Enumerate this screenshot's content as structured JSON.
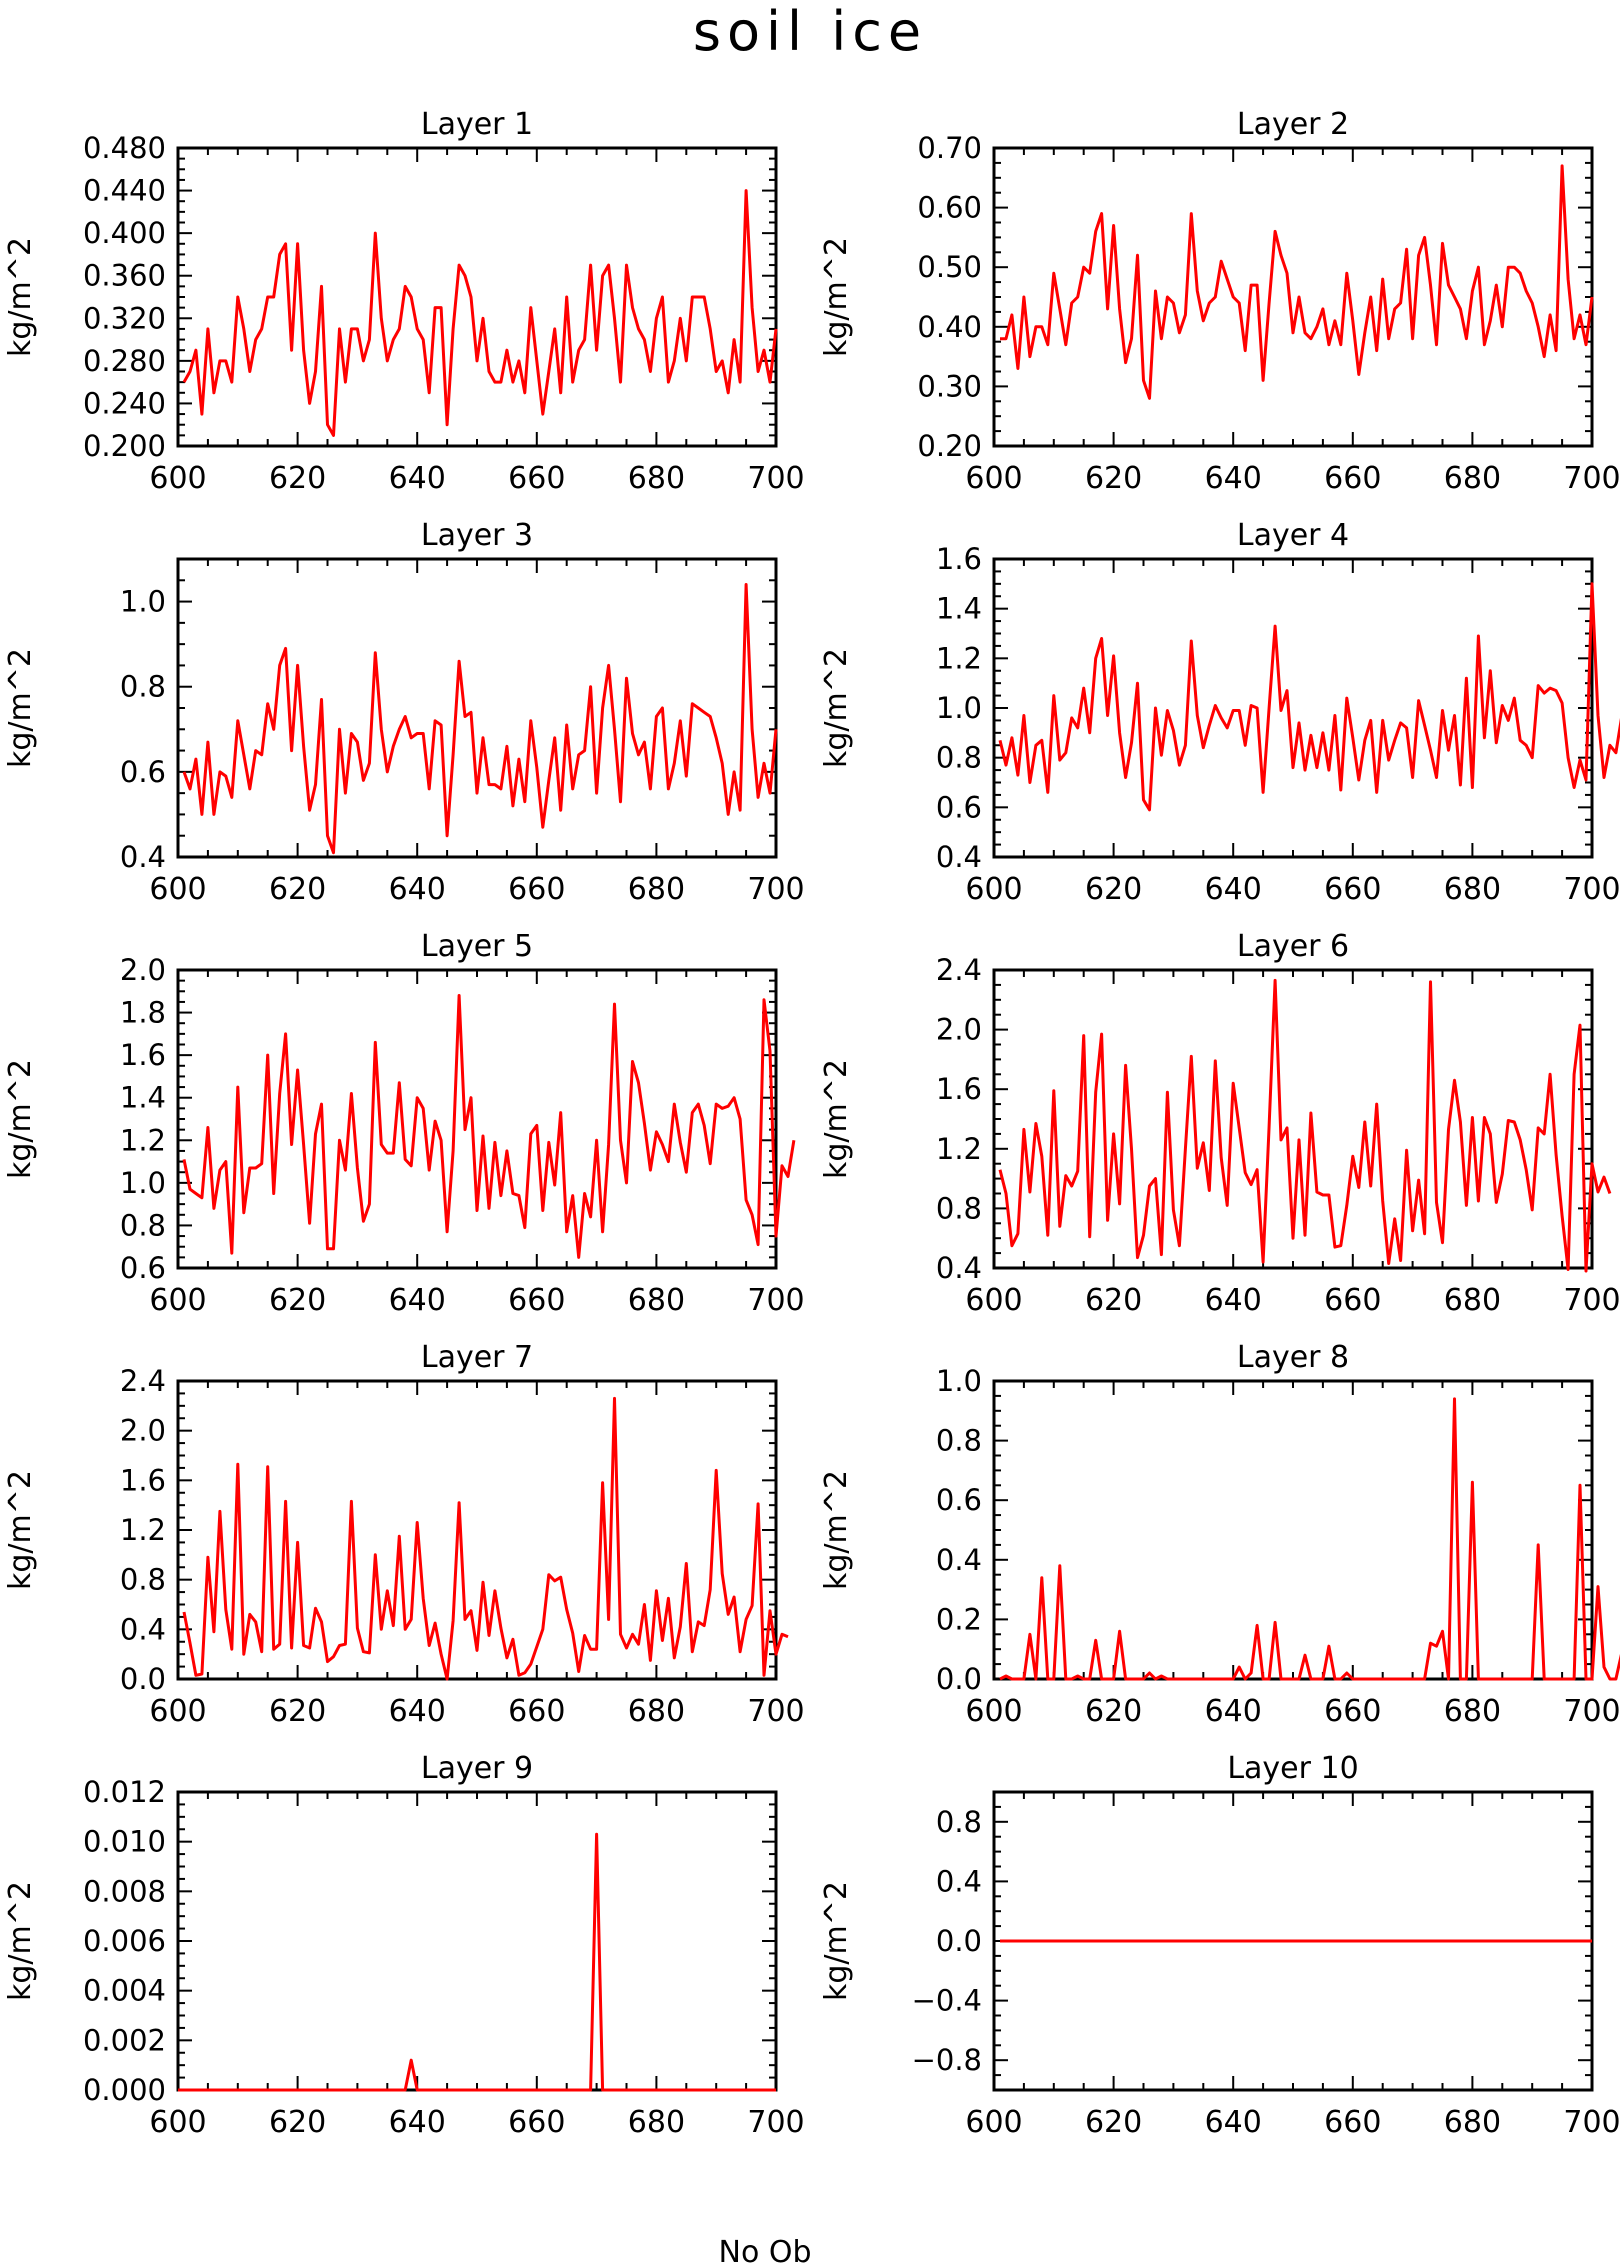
{
  "figure": {
    "title": "soil ice",
    "footer": "No Ob"
  },
  "chart_data": [
    {
      "type": "line",
      "title": "Layer 1",
      "xlabel": "",
      "ylabel": "kg/m^2",
      "xlim": [
        600,
        700
      ],
      "ylim": [
        0.2,
        0.48
      ],
      "xticks": [
        "600",
        "620",
        "640",
        "660",
        "680",
        "700"
      ],
      "yticks": [
        "0.200",
        "0.240",
        "0.280",
        "0.320",
        "0.360",
        "0.400",
        "0.440",
        "0.480"
      ],
      "line_color": "#ff0000",
      "x_start": 601,
      "values": [
        0.26,
        0.27,
        0.29,
        0.23,
        0.31,
        0.25,
        0.28,
        0.28,
        0.26,
        0.34,
        0.31,
        0.27,
        0.3,
        0.31,
        0.34,
        0.34,
        0.38,
        0.39,
        0.29,
        0.39,
        0.29,
        0.24,
        0.27,
        0.35,
        0.22,
        0.21,
        0.31,
        0.26,
        0.31,
        0.31,
        0.28,
        0.3,
        0.4,
        0.32,
        0.28,
        0.3,
        0.31,
        0.35,
        0.34,
        0.31,
        0.3,
        0.25,
        0.33,
        0.33,
        0.22,
        0.31,
        0.37,
        0.36,
        0.34,
        0.28,
        0.32,
        0.27,
        0.26,
        0.26,
        0.29,
        0.26,
        0.28,
        0.25,
        0.33,
        0.28,
        0.23,
        0.27,
        0.31,
        0.25,
        0.34,
        0.26,
        0.29,
        0.3,
        0.37,
        0.29,
        0.36,
        0.37,
        0.32,
        0.26,
        0.37,
        0.33,
        0.31,
        0.3,
        0.27,
        0.32,
        0.34,
        0.26,
        0.28,
        0.32,
        0.28,
        0.34,
        0.34,
        0.34,
        0.31,
        0.27,
        0.28,
        0.25,
        0.3,
        0.26,
        0.44,
        0.33,
        0.27,
        0.29,
        0.26,
        0.31
      ]
    },
    {
      "type": "line",
      "title": "Layer 2",
      "xlabel": "",
      "ylabel": "kg/m^2",
      "xlim": [
        600,
        700
      ],
      "ylim": [
        0.2,
        0.7
      ],
      "xticks": [
        "600",
        "620",
        "640",
        "660",
        "680",
        "700"
      ],
      "yticks": [
        "0.20",
        "0.30",
        "0.40",
        "0.50",
        "0.60",
        "0.70"
      ],
      "line_color": "#ff0000",
      "x_start": 601,
      "values": [
        0.38,
        0.38,
        0.42,
        0.33,
        0.45,
        0.35,
        0.4,
        0.4,
        0.37,
        0.49,
        0.43,
        0.37,
        0.44,
        0.45,
        0.5,
        0.49,
        0.56,
        0.59,
        0.43,
        0.57,
        0.43,
        0.34,
        0.38,
        0.52,
        0.31,
        0.28,
        0.46,
        0.38,
        0.45,
        0.44,
        0.39,
        0.42,
        0.59,
        0.46,
        0.41,
        0.44,
        0.45,
        0.51,
        0.48,
        0.45,
        0.44,
        0.36,
        0.47,
        0.47,
        0.31,
        0.44,
        0.56,
        0.52,
        0.49,
        0.39,
        0.45,
        0.39,
        0.38,
        0.4,
        0.43,
        0.37,
        0.41,
        0.37,
        0.49,
        0.41,
        0.32,
        0.39,
        0.45,
        0.36,
        0.48,
        0.38,
        0.43,
        0.44,
        0.53,
        0.38,
        0.52,
        0.55,
        0.47,
        0.37,
        0.54,
        0.47,
        0.45,
        0.43,
        0.38,
        0.46,
        0.5,
        0.37,
        0.41,
        0.47,
        0.4,
        0.5,
        0.5,
        0.49,
        0.46,
        0.44,
        0.4,
        0.35,
        0.42,
        0.36,
        0.67,
        0.48,
        0.38,
        0.42,
        0.37,
        0.45
      ]
    },
    {
      "type": "line",
      "title": "Layer 3",
      "xlabel": "",
      "ylabel": "kg/m^2",
      "xlim": [
        600,
        700
      ],
      "ylim": [
        0.4,
        1.1
      ],
      "xticks": [
        "600",
        "620",
        "640",
        "660",
        "680",
        "700"
      ],
      "yticks": [
        "0.4",
        "0.6",
        "0.8",
        "1.0"
      ],
      "line_color": "#ff0000",
      "x_start": 601,
      "values": [
        0.6,
        0.56,
        0.63,
        0.5,
        0.67,
        0.5,
        0.6,
        0.59,
        0.54,
        0.72,
        0.64,
        0.56,
        0.65,
        0.64,
        0.76,
        0.7,
        0.85,
        0.89,
        0.65,
        0.85,
        0.66,
        0.51,
        0.57,
        0.77,
        0.45,
        0.41,
        0.7,
        0.55,
        0.69,
        0.67,
        0.58,
        0.62,
        0.88,
        0.7,
        0.6,
        0.66,
        0.7,
        0.73,
        0.68,
        0.69,
        0.69,
        0.56,
        0.72,
        0.71,
        0.45,
        0.64,
        0.86,
        0.73,
        0.74,
        0.55,
        0.68,
        0.57,
        0.57,
        0.56,
        0.66,
        0.52,
        0.63,
        0.53,
        0.72,
        0.61,
        0.47,
        0.58,
        0.68,
        0.51,
        0.71,
        0.56,
        0.64,
        0.65,
        0.8,
        0.55,
        0.75,
        0.85,
        0.7,
        0.53,
        0.82,
        0.69,
        0.64,
        0.67,
        0.56,
        0.73,
        0.75,
        0.56,
        0.62,
        0.72,
        0.59,
        0.76,
        0.75,
        0.74,
        0.73,
        0.68,
        0.62,
        0.5,
        0.6,
        0.51,
        1.04,
        0.7,
        0.54,
        0.62,
        0.55,
        0.7
      ]
    },
    {
      "type": "line",
      "title": "Layer 4",
      "xlabel": "",
      "ylabel": "kg/m^2",
      "xlim": [
        600,
        700
      ],
      "ylim": [
        0.4,
        1.6
      ],
      "xticks": [
        "600",
        "620",
        "640",
        "660",
        "680",
        "700"
      ],
      "yticks": [
        "0.4",
        "0.6",
        "0.8",
        "1.0",
        "1.2",
        "1.4",
        "1.6"
      ],
      "line_color": "#ff0000",
      "x_start": 601,
      "values": [
        0.87,
        0.77,
        0.88,
        0.73,
        0.97,
        0.7,
        0.85,
        0.87,
        0.66,
        1.05,
        0.79,
        0.82,
        0.96,
        0.92,
        1.08,
        0.9,
        1.2,
        1.28,
        0.97,
        1.21,
        0.9,
        0.72,
        0.86,
        1.1,
        0.63,
        0.59,
        1.0,
        0.81,
        0.99,
        0.91,
        0.77,
        0.85,
        1.27,
        0.97,
        0.84,
        0.93,
        1.01,
        0.96,
        0.92,
        0.99,
        0.99,
        0.85,
        1.01,
        1.0,
        0.66,
        1.0,
        1.33,
        0.99,
        1.07,
        0.76,
        0.94,
        0.75,
        0.89,
        0.76,
        0.9,
        0.75,
        0.97,
        0.67,
        1.04,
        0.88,
        0.71,
        0.87,
        0.95,
        0.66,
        0.95,
        0.79,
        0.87,
        0.94,
        0.92,
        0.72,
        1.03,
        0.93,
        0.83,
        0.72,
        0.99,
        0.83,
        0.97,
        0.69,
        1.12,
        0.68,
        1.29,
        0.88,
        1.15,
        0.86,
        1.01,
        0.95,
        1.04,
        0.87,
        0.85,
        0.8,
        1.09,
        1.06,
        1.08,
        1.07,
        1.02,
        0.8,
        0.68,
        0.79,
        0.71,
        1.5,
        0.97,
        0.72,
        0.85,
        0.82,
        0.97
      ]
    },
    {
      "type": "line",
      "title": "Layer 5",
      "xlabel": "",
      "ylabel": "kg/m^2",
      "xlim": [
        600,
        700
      ],
      "ylim": [
        0.6,
        2.0
      ],
      "xticks": [
        "600",
        "620",
        "640",
        "660",
        "680",
        "700"
      ],
      "yticks": [
        "0.6",
        "0.8",
        "1.0",
        "1.2",
        "1.4",
        "1.6",
        "1.8",
        "2.0"
      ],
      "line_color": "#ff0000",
      "x_start": 601,
      "values": [
        1.11,
        0.97,
        0.95,
        0.93,
        1.26,
        0.88,
        1.06,
        1.1,
        0.67,
        1.45,
        0.86,
        1.07,
        1.07,
        1.09,
        1.6,
        0.95,
        1.42,
        1.7,
        1.18,
        1.53,
        1.18,
        0.81,
        1.23,
        1.37,
        0.69,
        0.69,
        1.2,
        1.06,
        1.42,
        1.07,
        0.82,
        0.9,
        1.66,
        1.18,
        1.14,
        1.14,
        1.47,
        1.11,
        1.08,
        1.4,
        1.35,
        1.06,
        1.29,
        1.2,
        0.77,
        1.15,
        1.88,
        1.25,
        1.4,
        0.87,
        1.22,
        0.88,
        1.19,
        0.94,
        1.15,
        0.95,
        0.94,
        0.79,
        1.23,
        1.27,
        0.87,
        1.19,
        0.99,
        1.33,
        0.77,
        0.94,
        0.65,
        0.95,
        0.84,
        1.2,
        0.77,
        1.18,
        1.84,
        1.2,
        1.0,
        1.57,
        1.47,
        1.28,
        1.06,
        1.24,
        1.18,
        1.1,
        1.37,
        1.19,
        1.05,
        1.33,
        1.37,
        1.27,
        1.09,
        1.37,
        1.35,
        1.36,
        1.4,
        1.3,
        0.92,
        0.85,
        0.71,
        1.86,
        1.62,
        0.75,
        1.08,
        1.03,
        1.2
      ]
    },
    {
      "type": "line",
      "title": "Layer 6",
      "xlabel": "",
      "ylabel": "kg/m^2",
      "xlim": [
        600,
        700
      ],
      "ylim": [
        0.4,
        2.4
      ],
      "xticks": [
        "600",
        "620",
        "640",
        "660",
        "680",
        "700"
      ],
      "yticks": [
        "0.4",
        "0.8",
        "1.2",
        "1.6",
        "2.0",
        "2.4"
      ],
      "line_color": "#ff0000",
      "x_start": 601,
      "values": [
        1.06,
        0.9,
        0.55,
        0.63,
        1.33,
        0.91,
        1.37,
        1.15,
        0.62,
        1.59,
        0.68,
        1.02,
        0.95,
        1.05,
        1.96,
        0.61,
        1.58,
        1.97,
        0.72,
        1.3,
        0.83,
        1.76,
        1.2,
        0.47,
        0.62,
        0.95,
        1.0,
        0.49,
        1.58,
        0.79,
        0.55,
        1.2,
        1.82,
        1.07,
        1.24,
        0.92,
        1.79,
        1.14,
        0.82,
        1.64,
        1.34,
        1.04,
        0.96,
        1.06,
        0.44,
        1.35,
        2.33,
        1.26,
        1.34,
        0.6,
        1.26,
        0.62,
        1.44,
        0.91,
        0.89,
        0.89,
        0.54,
        0.55,
        0.82,
        1.15,
        0.94,
        1.38,
        0.95,
        1.5,
        0.85,
        0.43,
        0.73,
        0.45,
        1.19,
        0.65,
        0.99,
        0.63,
        2.32,
        0.84,
        0.57,
        1.33,
        1.66,
        1.38,
        0.82,
        1.41,
        0.85,
        1.41,
        1.3,
        0.84,
        1.03,
        1.39,
        1.38,
        1.26,
        1.06,
        0.79,
        1.34,
        1.3,
        1.7,
        1.16,
        0.75,
        0.39,
        1.7,
        2.03,
        0.38,
        1.1,
        0.91,
        1.01,
        0.9
      ]
    },
    {
      "type": "line",
      "title": "Layer 7",
      "xlabel": "",
      "ylabel": "kg/m^2",
      "xlim": [
        600,
        700
      ],
      "ylim": [
        0.0,
        2.4
      ],
      "xticks": [
        "600",
        "620",
        "640",
        "660",
        "680",
        "700"
      ],
      "yticks": [
        "0.0",
        "0.4",
        "0.8",
        "1.2",
        "1.6",
        "2.0",
        "2.4"
      ],
      "line_color": "#ff0000",
      "x_start": 601,
      "values": [
        0.54,
        0.29,
        0.03,
        0.04,
        0.98,
        0.38,
        1.35,
        0.56,
        0.24,
        1.73,
        0.2,
        0.52,
        0.46,
        0.22,
        1.71,
        0.24,
        0.28,
        1.43,
        0.25,
        1.1,
        0.27,
        0.25,
        0.57,
        0.46,
        0.14,
        0.18,
        0.27,
        0.28,
        1.43,
        0.41,
        0.22,
        0.21,
        1.0,
        0.4,
        0.71,
        0.43,
        1.15,
        0.4,
        0.48,
        1.26,
        0.65,
        0.27,
        0.45,
        0.2,
        0.0,
        0.47,
        1.42,
        0.48,
        0.55,
        0.23,
        0.78,
        0.35,
        0.71,
        0.41,
        0.17,
        0.32,
        0.03,
        0.05,
        0.12,
        0.26,
        0.4,
        0.84,
        0.79,
        0.82,
        0.56,
        0.37,
        0.06,
        0.35,
        0.24,
        0.24,
        1.58,
        0.48,
        2.26,
        0.36,
        0.25,
        0.36,
        0.28,
        0.6,
        0.15,
        0.71,
        0.31,
        0.65,
        0.17,
        0.42,
        0.93,
        0.22,
        0.46,
        0.43,
        0.72,
        1.68,
        0.85,
        0.52,
        0.66,
        0.22,
        0.48,
        0.59,
        1.41,
        0.03,
        0.55,
        0.2,
        0.36,
        0.34
      ]
    },
    {
      "type": "line",
      "title": "Layer 8",
      "xlabel": "",
      "ylabel": "kg/m^2",
      "xlim": [
        600,
        700
      ],
      "ylim": [
        0.0,
        1.0
      ],
      "xticks": [
        "600",
        "620",
        "640",
        "660",
        "680",
        "700"
      ],
      "yticks": [
        "0.0",
        "0.2",
        "0.4",
        "0.6",
        "0.8",
        "1.0"
      ],
      "line_color": "#ff0000",
      "x_start": 601,
      "values": [
        0.0,
        0.01,
        0.0,
        0.0,
        0.0,
        0.15,
        0.0,
        0.34,
        0.0,
        0.0,
        0.38,
        0.0,
        0.0,
        0.01,
        0.0,
        0.0,
        0.13,
        0.0,
        0.0,
        0.0,
        0.16,
        0.0,
        0.0,
        0.0,
        0.0,
        0.02,
        0.0,
        0.01,
        0.0,
        0.0,
        0.0,
        0.0,
        0.0,
        0.0,
        0.0,
        0.0,
        0.0,
        0.0,
        0.0,
        0.0,
        0.04,
        0.0,
        0.02,
        0.18,
        0.0,
        0.0,
        0.19,
        0.0,
        0.0,
        0.0,
        0.0,
        0.08,
        0.0,
        0.0,
        0.0,
        0.11,
        0.0,
        0.0,
        0.02,
        0.0,
        0.0,
        0.0,
        0.0,
        0.0,
        0.0,
        0.0,
        0.0,
        0.0,
        0.0,
        0.0,
        0.0,
        0.0,
        0.12,
        0.11,
        0.16,
        0.0,
        0.94,
        0.0,
        0.0,
        0.66,
        0.0,
        0.0,
        0.0,
        0.0,
        0.0,
        0.0,
        0.0,
        0.0,
        0.0,
        0.0,
        0.45,
        0.0,
        0.0,
        0.0,
        0.0,
        0.0,
        0.0,
        0.65,
        0.0,
        0.0,
        0.31,
        0.04,
        0.0,
        0.0,
        0.09,
        0.0,
        0.0,
        0.0
      ]
    },
    {
      "type": "line",
      "title": "Layer 9",
      "xlabel": "",
      "ylabel": "kg/m^2",
      "xlim": [
        600,
        700
      ],
      "ylim": [
        0.0,
        0.012
      ],
      "xticks": [
        "600",
        "620",
        "640",
        "660",
        "680",
        "700"
      ],
      "yticks": [
        "0.000",
        "0.002",
        "0.004",
        "0.006",
        "0.008",
        "0.010",
        "0.012"
      ],
      "line_color": "#ff0000",
      "x": [
        600,
        638,
        639,
        640,
        669,
        670,
        671,
        700
      ],
      "values": [
        0.0,
        0.0,
        0.0012,
        0.0,
        0.0,
        0.0103,
        0.0,
        0.0
      ]
    },
    {
      "type": "line",
      "title": "Layer 10",
      "xlabel": "",
      "ylabel": "kg/m^2",
      "xlim": [
        600,
        700
      ],
      "ylim": [
        -1.0,
        1.0
      ],
      "xticks": [
        "600",
        "620",
        "640",
        "660",
        "680",
        "700"
      ],
      "yticks": [
        "−0.8",
        "−0.4",
        "0.0",
        "0.4",
        "0.8"
      ],
      "ytick_values": [
        -0.8,
        -0.4,
        0.0,
        0.4,
        0.8
      ],
      "line_color": "#ff0000",
      "x": [
        601,
        700
      ],
      "values": [
        0.0,
        0.0
      ]
    }
  ]
}
